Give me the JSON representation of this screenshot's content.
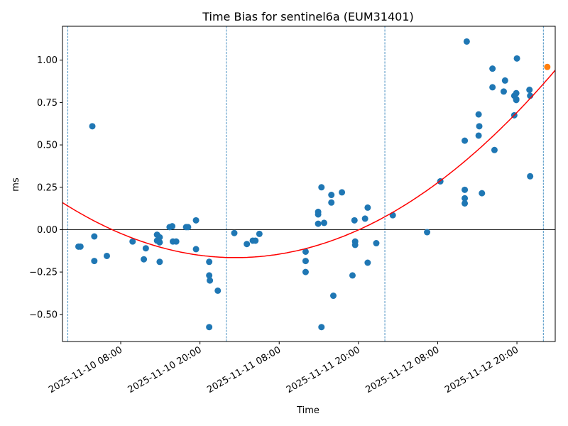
{
  "chart_data": {
    "type": "scatter",
    "title": "Time Bias for sentinel6a (EUM31401)",
    "xlabel": "Time",
    "ylabel": "ms",
    "x_reference": "2025-11-10 00:00",
    "x_units": "hours since reference",
    "xlim": [
      -0.82,
      73.8
    ],
    "ylim": [
      -0.66,
      1.2
    ],
    "yticks": [
      -0.5,
      -0.25,
      0.0,
      0.25,
      0.5,
      0.75,
      1.0
    ],
    "ytick_labels": [
      "−0.50",
      "−0.25",
      "0.00",
      "0.25",
      "0.50",
      "0.75",
      "1.00"
    ],
    "xticks": [
      8,
      20,
      32,
      44,
      56,
      68
    ],
    "xtick_labels": [
      "2025-11-10 08:00",
      "2025-11-10 20:00",
      "2025-11-11 08:00",
      "2025-11-11 20:00",
      "2025-11-12 08:00",
      "2025-11-12 20:00"
    ],
    "vlines_hours": [
      0,
      24,
      48,
      72
    ],
    "hline": 0.0,
    "grid": false,
    "colors": {
      "points": "#1f77b4",
      "last_point": "#ff7f0e",
      "fit": "#ff0000",
      "vlines": "#1f77b4"
    },
    "points": [
      [
        3.7,
        0.61
      ],
      [
        1.6,
        -0.1
      ],
      [
        1.9,
        -0.1
      ],
      [
        4.0,
        -0.04
      ],
      [
        4.0,
        -0.185
      ],
      [
        5.9,
        -0.155
      ],
      [
        9.8,
        -0.07
      ],
      [
        11.5,
        -0.175
      ],
      [
        11.8,
        -0.11
      ],
      [
        13.5,
        -0.03
      ],
      [
        13.5,
        -0.065
      ],
      [
        13.9,
        -0.045
      ],
      [
        13.9,
        -0.075
      ],
      [
        13.9,
        -0.19
      ],
      [
        15.4,
        0.015
      ],
      [
        15.8,
        0.02
      ],
      [
        15.9,
        -0.07
      ],
      [
        16.4,
        -0.07
      ],
      [
        17.9,
        0.015
      ],
      [
        18.2,
        0.015
      ],
      [
        19.4,
        0.055
      ],
      [
        19.4,
        -0.115
      ],
      [
        21.4,
        -0.19
      ],
      [
        21.4,
        -0.27
      ],
      [
        21.5,
        -0.3
      ],
      [
        22.7,
        -0.36
      ],
      [
        21.4,
        -0.575
      ],
      [
        25.2,
        -0.02
      ],
      [
        27.1,
        -0.085
      ],
      [
        28.0,
        -0.065
      ],
      [
        28.4,
        -0.065
      ],
      [
        29.0,
        -0.025
      ],
      [
        36.0,
        -0.13
      ],
      [
        36.0,
        -0.185
      ],
      [
        36.0,
        -0.25
      ],
      [
        37.9,
        0.105
      ],
      [
        37.9,
        0.09
      ],
      [
        37.9,
        0.035
      ],
      [
        38.4,
        0.25
      ],
      [
        38.8,
        0.04
      ],
      [
        38.4,
        -0.575
      ],
      [
        39.9,
        0.205
      ],
      [
        39.9,
        0.16
      ],
      [
        40.2,
        -0.39
      ],
      [
        41.5,
        0.22
      ],
      [
        43.1,
        -0.27
      ],
      [
        43.4,
        0.055
      ],
      [
        43.5,
        -0.07
      ],
      [
        43.5,
        -0.09
      ],
      [
        45.0,
        0.065
      ],
      [
        45.4,
        0.13
      ],
      [
        45.4,
        -0.195
      ],
      [
        46.7,
        -0.08
      ],
      [
        49.2,
        0.085
      ],
      [
        54.4,
        -0.015
      ],
      [
        56.4,
        0.285
      ],
      [
        60.1,
        0.525
      ],
      [
        60.1,
        0.235
      ],
      [
        60.1,
        0.185
      ],
      [
        60.1,
        0.155
      ],
      [
        60.4,
        1.11
      ],
      [
        62.2,
        0.68
      ],
      [
        62.3,
        0.61
      ],
      [
        62.2,
        0.555
      ],
      [
        62.7,
        0.215
      ],
      [
        64.3,
        0.95
      ],
      [
        64.3,
        0.84
      ],
      [
        64.6,
        0.47
      ],
      [
        66.2,
        0.88
      ],
      [
        66.0,
        0.815
      ],
      [
        67.6,
        0.79
      ],
      [
        67.9,
        0.805
      ],
      [
        67.9,
        0.77
      ],
      [
        67.9,
        0.765
      ],
      [
        68.0,
        1.01
      ],
      [
        67.6,
        0.675
      ],
      [
        69.9,
        0.825
      ],
      [
        70.0,
        0.79
      ],
      [
        70.0,
        0.315
      ]
    ],
    "last_point": [
      72.6,
      0.96
    ],
    "fit": {
      "type": "quadratic",
      "vertex_hours": 25.4,
      "vertex_value": -0.165,
      "a": 0.000472
    }
  }
}
